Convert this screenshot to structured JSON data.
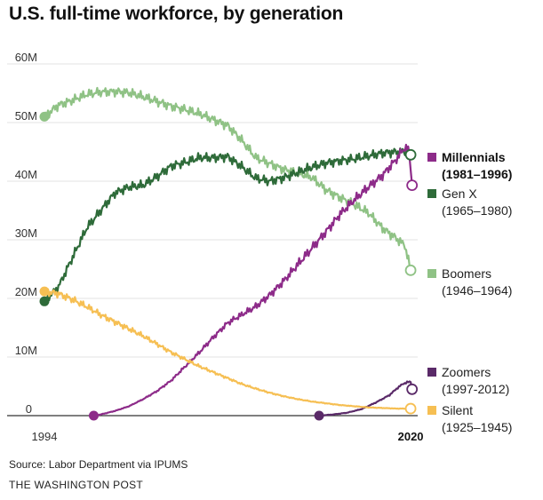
{
  "chart_data": {
    "type": "line",
    "title": "U.S. full-time workforce, by generation",
    "xlabel": "",
    "ylabel": "",
    "xlim": [
      1994,
      2020.5
    ],
    "ylim": [
      0,
      60
    ],
    "y_ticks": [
      {
        "value": 0,
        "label": "0"
      },
      {
        "value": 10,
        "label": "10M"
      },
      {
        "value": 20,
        "label": "20M"
      },
      {
        "value": 30,
        "label": "30M"
      },
      {
        "value": 40,
        "label": "40M"
      },
      {
        "value": 50,
        "label": "50M"
      },
      {
        "value": 60,
        "label": "60M"
      }
    ],
    "x_ticks": [
      {
        "value": 1994,
        "label": "1994",
        "bold": false
      },
      {
        "value": 2020,
        "label": "2020",
        "bold": true
      }
    ],
    "series": [
      {
        "name": "Boomers",
        "years": "(1946–1964)",
        "color": "#8fc285",
        "values": [
          [
            1994,
            51
          ],
          [
            1995,
            53
          ],
          [
            1996,
            53.8
          ],
          [
            1997,
            54.8
          ],
          [
            1998,
            55.2
          ],
          [
            1999,
            55.3
          ],
          [
            2000,
            55.1
          ],
          [
            2001,
            54.4
          ],
          [
            2002,
            53.6
          ],
          [
            2003,
            52.8
          ],
          [
            2004,
            52.2
          ],
          [
            2005,
            51.5
          ],
          [
            2006,
            50.5
          ],
          [
            2007,
            49.5
          ],
          [
            2008,
            47
          ],
          [
            2009,
            44
          ],
          [
            2010,
            43
          ],
          [
            2011,
            42
          ],
          [
            2012,
            41.4
          ],
          [
            2013,
            40.6
          ],
          [
            2014,
            38.5
          ],
          [
            2015,
            37.2
          ],
          [
            2016,
            36
          ],
          [
            2017,
            34.6
          ],
          [
            2018,
            32
          ],
          [
            2019,
            30.2
          ],
          [
            2019.6,
            29
          ],
          [
            2020,
            24.8
          ]
        ]
      },
      {
        "name": "Gen X",
        "years": "(1965–1980)",
        "color": "#2e6b39",
        "values": [
          [
            1994,
            19.5
          ],
          [
            1995,
            22
          ],
          [
            1996,
            27
          ],
          [
            1997,
            32
          ],
          [
            1998,
            35
          ],
          [
            1999,
            38
          ],
          [
            2000,
            39
          ],
          [
            2001,
            39.3
          ],
          [
            2002,
            40.8
          ],
          [
            2003,
            42.6
          ],
          [
            2004,
            43.2
          ],
          [
            2005,
            44
          ],
          [
            2006,
            44
          ],
          [
            2007,
            44.2
          ],
          [
            2008,
            42.5
          ],
          [
            2009,
            40.5
          ],
          [
            2010,
            40
          ],
          [
            2011,
            40.6
          ],
          [
            2012,
            41.5
          ],
          [
            2013,
            42.4
          ],
          [
            2014,
            43.1
          ],
          [
            2015,
            43.5
          ],
          [
            2016,
            43.8
          ],
          [
            2017,
            44.3
          ],
          [
            2018,
            44.8
          ],
          [
            2019,
            45
          ],
          [
            2019.6,
            45
          ],
          [
            2020,
            44.5
          ]
        ]
      },
      {
        "name": "Millennials",
        "years": "(1981–1996)",
        "color": "#8d2b89",
        "bold": true,
        "values": [
          [
            1997.5,
            0
          ],
          [
            1998,
            0.2
          ],
          [
            1999,
            0.8
          ],
          [
            2000,
            1.6
          ],
          [
            2001,
            2.8
          ],
          [
            2002,
            4.2
          ],
          [
            2003,
            6
          ],
          [
            2004,
            8.4
          ],
          [
            2005,
            10.8
          ],
          [
            2006,
            13.4
          ],
          [
            2007,
            15.8
          ],
          [
            2008,
            17.2
          ],
          [
            2009,
            18.6
          ],
          [
            2010,
            20.6
          ],
          [
            2011,
            23
          ],
          [
            2012,
            25.8
          ],
          [
            2013,
            28.6
          ],
          [
            2014,
            31.4
          ],
          [
            2015,
            34.4
          ],
          [
            2016,
            36.8
          ],
          [
            2017,
            39
          ],
          [
            2018,
            41
          ],
          [
            2019,
            43.8
          ],
          [
            2019.6,
            45.8
          ],
          [
            2019.9,
            45
          ],
          [
            2020.1,
            39.3
          ]
        ]
      },
      {
        "name": "Zoomers",
        "years": "(1997-2012)",
        "color": "#5a2a68",
        "values": [
          [
            2013.5,
            0
          ],
          [
            2014.5,
            0.2
          ],
          [
            2015.5,
            0.5
          ],
          [
            2016.5,
            1.1
          ],
          [
            2017.5,
            2.2
          ],
          [
            2018.5,
            3.5
          ],
          [
            2019,
            4.6
          ],
          [
            2019.5,
            5.5
          ],
          [
            2020,
            5.8
          ],
          [
            2020.1,
            4.5
          ]
        ]
      },
      {
        "name": "Silent",
        "years": "(1925–1945)",
        "color": "#f6bf53",
        "values": [
          [
            1994,
            21.2
          ],
          [
            1995,
            20.8
          ],
          [
            1996,
            19.8
          ],
          [
            1997,
            18.6
          ],
          [
            1998,
            17.2
          ],
          [
            1999,
            16
          ],
          [
            2000,
            14.8
          ],
          [
            2001,
            13.6
          ],
          [
            2002,
            12.2
          ],
          [
            2003,
            10.8
          ],
          [
            2004,
            9.6
          ],
          [
            2005,
            8.4
          ],
          [
            2006,
            7.4
          ],
          [
            2007,
            6.4
          ],
          [
            2008,
            5.4
          ],
          [
            2009,
            4.6
          ],
          [
            2010,
            3.9
          ],
          [
            2011,
            3.3
          ],
          [
            2012,
            2.8
          ],
          [
            2013,
            2.4
          ],
          [
            2014,
            2.1
          ],
          [
            2015,
            1.8
          ],
          [
            2016,
            1.6
          ],
          [
            2017,
            1.4
          ],
          [
            2018,
            1.3
          ],
          [
            2019,
            1.2
          ],
          [
            2020,
            1.2
          ]
        ]
      }
    ]
  },
  "legend": [
    {
      "key": "millennials",
      "name": "Millennials",
      "years": "(1981–1996)",
      "color": "#8d2b89",
      "bold": true
    },
    {
      "key": "genx",
      "name": "Gen X",
      "years": "(1965–1980)",
      "color": "#2e6b39",
      "bold": false
    },
    {
      "key": "boomers",
      "name": "Boomers",
      "years": "(1946–1964)",
      "color": "#8fc285",
      "bold": false
    },
    {
      "key": "zoomers",
      "name": "Zoomers",
      "years": "(1997-2012)",
      "color": "#5a2a68",
      "bold": false
    },
    {
      "key": "silent",
      "name": "Silent",
      "years": "(1925–1945)",
      "color": "#f6bf53",
      "bold": false
    }
  ],
  "footer": {
    "source": "Source: Labor Department via IPUMS",
    "credit": "THE WASHINGTON POST"
  }
}
